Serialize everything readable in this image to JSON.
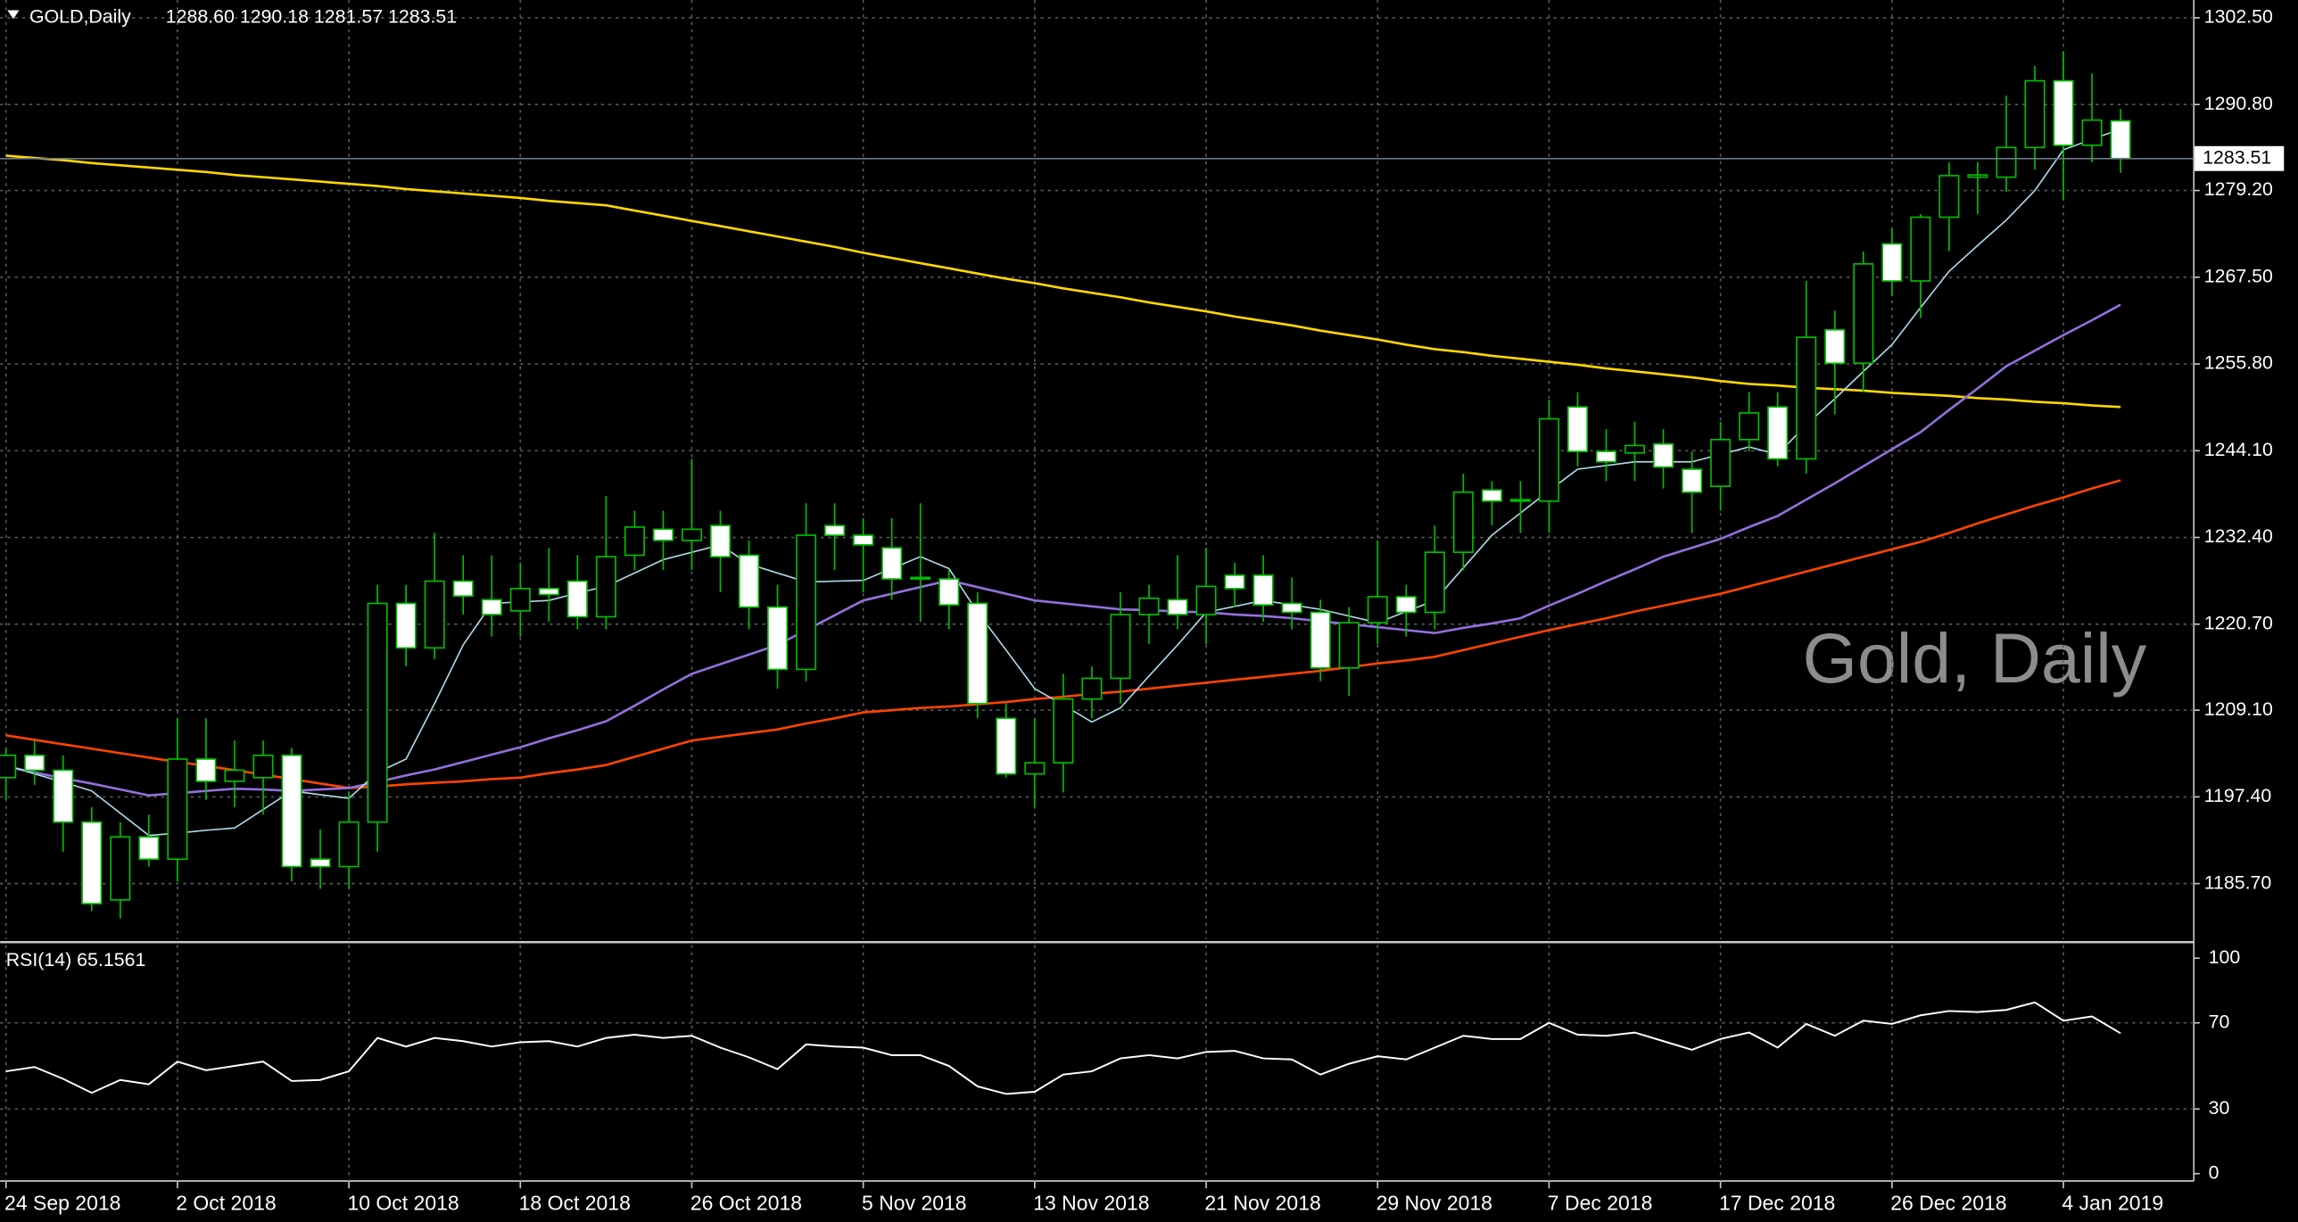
{
  "chart_data": [
    {
      "type": "candlestick",
      "symbol": "GOLD,Daily",
      "ohlc": "1288.60 1290.18 1281.57 1283.51",
      "watermark": "Gold, Daily",
      "categories": [
        "24 Sep 2018",
        null,
        null,
        null,
        null,
        null,
        "2 Oct 2018",
        null,
        null,
        null,
        null,
        null,
        "10 Oct 2018",
        null,
        null,
        null,
        null,
        null,
        "18 Oct 2018",
        null,
        null,
        null,
        null,
        null,
        "26 Oct 2018",
        null,
        null,
        null,
        null,
        null,
        "5 Nov 2018",
        null,
        null,
        null,
        null,
        null,
        "13 Nov 2018",
        null,
        null,
        null,
        null,
        null,
        "21 Nov 2018",
        null,
        null,
        null,
        null,
        null,
        "29 Nov 2018",
        null,
        null,
        null,
        null,
        null,
        "7 Dec 2018",
        null,
        null,
        null,
        null,
        null,
        "17 Dec 2018",
        null,
        null,
        null,
        null,
        null,
        "26 Dec 2018",
        null,
        null,
        null,
        null,
        null,
        "4 Jan 2019",
        null,
        null
      ],
      "open": [
        1200,
        1203,
        1201,
        1194,
        1183.5,
        1192,
        1189,
        1202.5,
        1199.5,
        1200,
        1203,
        1189,
        1188,
        1194,
        1223.5,
        1217.5,
        1226.5,
        1224,
        1222.5,
        1225.5,
        1226.5,
        1221.7,
        1230,
        1233.5,
        1232,
        1234,
        1230,
        1223,
        1214.6,
        1234,
        1232.7,
        1231,
        1226.8,
        1226.8,
        1223.5,
        1208,
        1200.5,
        1202,
        1210.6,
        1213.4,
        1222,
        1224,
        1222,
        1227.3,
        1227.3,
        1223.5,
        1222.3,
        1214.8,
        1220.9,
        1224.4,
        1222.3,
        1230.4,
        1238.8,
        1237.3,
        1237.3,
        1250,
        1244,
        1243.8,
        1245,
        1241.6,
        1239.3,
        1245.6,
        1250,
        1243,
        1260.4,
        1255.9,
        1272,
        1267,
        1275.6,
        1281,
        1281,
        1285,
        1294,
        1285.3,
        1288.6
      ],
      "high": [
        1204,
        1205,
        1203,
        1196,
        1194,
        1195,
        1208,
        1208,
        1205,
        1205,
        1204,
        1193,
        1198,
        1226,
        1226,
        1233,
        1230,
        1230,
        1229,
        1231,
        1230,
        1238,
        1236,
        1236,
        1243,
        1236,
        1232,
        1226,
        1237,
        1237,
        1235,
        1235,
        1237,
        1228,
        1225,
        1210,
        1208,
        1214,
        1215,
        1225,
        1226,
        1230,
        1231,
        1229,
        1230,
        1227,
        1224,
        1223,
        1232,
        1226,
        1234,
        1241,
        1240,
        1240,
        1251,
        1252,
        1247,
        1248,
        1247,
        1244,
        1248,
        1252,
        1252,
        1267,
        1263,
        1271,
        1274,
        1276,
        1283,
        1283,
        1292,
        1296,
        1298,
        1295,
        1290.18
      ],
      "low": [
        1197,
        1199,
        1190,
        1182,
        1181,
        1188,
        1186,
        1197,
        1196,
        1195,
        1186,
        1185,
        1185,
        1190,
        1215,
        1216,
        1222,
        1219,
        1219,
        1221,
        1220,
        1220,
        1228,
        1228,
        1228,
        1225,
        1220,
        1212,
        1213,
        1228,
        1225,
        1224,
        1221,
        1220,
        1208,
        1200,
        1196,
        1198,
        1208,
        1210,
        1218,
        1220,
        1218,
        1223,
        1221,
        1220,
        1213,
        1211,
        1218,
        1219,
        1220,
        1228,
        1234,
        1233,
        1233,
        1242,
        1240,
        1240,
        1239,
        1233,
        1236,
        1244,
        1242,
        1241,
        1249,
        1252,
        1265,
        1262,
        1271,
        1276,
        1279,
        1282,
        1278,
        1283,
        1281.57
      ],
      "close": [
        1203,
        1201,
        1194,
        1183,
        1192,
        1189,
        1202.5,
        1199.5,
        1201,
        1203,
        1188,
        1188,
        1194,
        1223.5,
        1217.5,
        1226.5,
        1224.5,
        1222,
        1225.5,
        1224.7,
        1221.7,
        1229.8,
        1233.8,
        1232,
        1233.5,
        1229.8,
        1223,
        1214.6,
        1232.7,
        1232.7,
        1231.4,
        1226.8,
        1227,
        1223.3,
        1210,
        1200.5,
        1202,
        1210.6,
        1213.4,
        1222,
        1224.2,
        1222,
        1225.8,
        1225.5,
        1223.3,
        1222.3,
        1214.8,
        1220.9,
        1224.4,
        1222.3,
        1230.4,
        1238.5,
        1237.3,
        1237.5,
        1248.4,
        1244,
        1242.6,
        1244.8,
        1241.9,
        1238.5,
        1245.6,
        1249.2,
        1243,
        1259.4,
        1255.9,
        1269.3,
        1267,
        1275.6,
        1281.2,
        1281.3,
        1285,
        1294,
        1285.3,
        1288.7,
        1283.51
      ],
      "up_color": "#000000",
      "down_color": "#ffffff",
      "wick_color": "#00c000",
      "series": [
        {
          "color": "#ffd700",
          "values": [
            1283.9,
            1283.6,
            1283.3,
            1282.9,
            1282.6,
            1282.3,
            1282.0,
            1281.7,
            1281.3,
            1281.0,
            1280.7,
            1280.4,
            1280.1,
            1279.8,
            1279.4,
            1279.1,
            1278.8,
            1278.5,
            1278.2,
            1277.8,
            1277.5,
            1277.2,
            1276.5,
            1275.8,
            1275.1,
            1274.4,
            1273.7,
            1273.0,
            1272.3,
            1271.6,
            1270.8,
            1270.1,
            1269.4,
            1268.7,
            1268.0,
            1267.3,
            1266.7,
            1266.0,
            1265.4,
            1264.8,
            1264.1,
            1263.5,
            1262.9,
            1262.2,
            1261.6,
            1261.0,
            1260.3,
            1259.7,
            1259.1,
            1258.4,
            1257.8,
            1257.4,
            1256.9,
            1256.5,
            1256.1,
            1255.7,
            1255.2,
            1254.8,
            1254.4,
            1254.0,
            1253.5,
            1253.1,
            1252.9,
            1252.6,
            1252.4,
            1252.2,
            1251.9,
            1251.7,
            1251.5,
            1251.2,
            1251.0,
            1250.7,
            1250.5,
            1250.2,
            1250.0
          ]
        },
        {
          "color": "#ff4500",
          "values": [
            1205.7,
            1205.1,
            1204.5,
            1203.9,
            1203.3,
            1202.7,
            1202.1,
            1201.6,
            1201.0,
            1200.4,
            1199.8,
            1199.2,
            1198.6,
            1198.8,
            1199.1,
            1199.3,
            1199.5,
            1199.8,
            1200.0,
            1200.6,
            1201.1,
            1201.7,
            1202.8,
            1203.9,
            1205.0,
            1205.5,
            1206.0,
            1206.5,
            1207.3,
            1208.0,
            1208.8,
            1209.1,
            1209.4,
            1209.6,
            1209.9,
            1210.2,
            1210.6,
            1210.9,
            1211.3,
            1211.6,
            1212.0,
            1212.4,
            1212.8,
            1213.2,
            1213.6,
            1214.0,
            1214.4,
            1214.9,
            1215.4,
            1215.8,
            1216.3,
            1217.2,
            1218.1,
            1219.0,
            1219.9,
            1220.7,
            1221.5,
            1222.4,
            1223.2,
            1224.0,
            1224.8,
            1225.8,
            1226.8,
            1227.8,
            1228.8,
            1229.8,
            1230.8,
            1231.8,
            1233.0,
            1234.3,
            1235.5,
            1236.7,
            1237.8,
            1239.0,
            1240.1
          ]
        },
        {
          "color": "#9370db",
          "values": [
            1201.5,
            1200.7,
            1199.9,
            1199.2,
            1198.4,
            1197.6,
            1197.9,
            1198.2,
            1198.5,
            1198.4,
            1198.2,
            1198.4,
            1198.6,
            1199.4,
            1200.3,
            1201.1,
            1202.1,
            1203.1,
            1204.1,
            1205.3,
            1206.4,
            1207.6,
            1209.7,
            1211.9,
            1214.0,
            1215.3,
            1216.6,
            1217.9,
            1219.9,
            1221.9,
            1223.9,
            1224.8,
            1225.7,
            1226.6,
            1225.7,
            1224.8,
            1223.9,
            1223.5,
            1223.1,
            1222.7,
            1222.6,
            1222.4,
            1222.3,
            1222.0,
            1221.8,
            1221.5,
            1221.1,
            1220.7,
            1220.3,
            1219.9,
            1219.5,
            1220.2,
            1220.8,
            1221.5,
            1223.2,
            1224.8,
            1226.5,
            1228.1,
            1229.8,
            1231.0,
            1232.2,
            1233.8,
            1235.3,
            1237.5,
            1239.7,
            1242.0,
            1244.3,
            1246.6,
            1249.6,
            1252.5,
            1255.5,
            1257.6,
            1259.7,
            1261.7,
            1263.8
          ]
        },
        {
          "color": "#add8e6",
          "values": [
            1201.7,
            1200.5,
            1199.4,
            1198.2,
            1195.2,
            1192.2,
            1192.5,
            1192.9,
            1193.2,
            1195.7,
            1198.2,
            1197.7,
            1197.2,
            1200.7,
            1202.5,
            1210.0,
            1217.9,
            1223.5,
            1223.7,
            1223.9,
            1224.9,
            1225.8,
            1227.6,
            1229.4,
            1230.4,
            1231.4,
            1228.8,
            1227.6,
            1226.4,
            1226.5,
            1226.6,
            1228.2,
            1229.8,
            1228.2,
            1222.3,
            1217.2,
            1212.0,
            1209.8,
            1207.5,
            1209.4,
            1213.7,
            1217.9,
            1222.3,
            1223.1,
            1223.9,
            1223.3,
            1222.7,
            1221.8,
            1220.9,
            1222.4,
            1223.9,
            1228.3,
            1232.7,
            1235.7,
            1238.7,
            1241.6,
            1242.1,
            1242.6,
            1242.6,
            1242.6,
            1243.6,
            1244.6,
            1243.6,
            1247.6,
            1251.1,
            1254.8,
            1258.4,
            1263.4,
            1268.3,
            1271.8,
            1275.2,
            1279.2,
            1284.7,
            1286.1,
            1287.5
          ]
        }
      ],
      "ylim": [
        1178.2,
        1304.9
      ],
      "yticks": [
        {
          "value": 1302.5,
          "label": "1302.50"
        },
        {
          "value": 1290.8,
          "label": "1290.80"
        },
        {
          "value": 1279.2,
          "label": "1279.20"
        },
        {
          "value": 1267.5,
          "label": "1267.50"
        },
        {
          "value": 1255.8,
          "label": "1255.80"
        },
        {
          "value": 1244.1,
          "label": "1244.10"
        },
        {
          "value": 1232.4,
          "label": "1232.40"
        },
        {
          "value": 1220.7,
          "label": "1220.70"
        },
        {
          "value": 1209.1,
          "label": "1209.10"
        },
        {
          "value": 1197.4,
          "label": "1197.40"
        },
        {
          "value": 1185.7,
          "label": "1185.70"
        }
      ],
      "last_price": 1283.51,
      "grid": true
    },
    {
      "type": "line",
      "title": "RSI(14) 65.1561",
      "color": "#ffffff",
      "values": [
        47.5,
        49.5,
        44,
        37.5,
        43.5,
        41.5,
        52,
        48,
        50,
        52,
        43,
        43.5,
        47.5,
        63,
        59,
        63,
        61.5,
        59,
        61,
        61.5,
        59,
        63,
        64.5,
        63,
        64,
        58.5,
        54,
        48.5,
        60,
        59,
        58.5,
        55,
        55,
        50,
        40.5,
        37,
        38,
        46,
        47.5,
        53.5,
        55,
        53.5,
        56.5,
        57,
        53.5,
        53,
        46,
        51,
        54.5,
        53,
        58.5,
        64,
        62.5,
        62.5,
        70,
        64.5,
        64,
        65.5,
        61.5,
        57.5,
        62.5,
        65.5,
        58.5,
        69.5,
        64,
        71,
        69.5,
        73.5,
        75.5,
        75,
        76,
        79.5,
        71,
        73,
        65.1561
      ],
      "ylim": [
        -3.4,
        106.1
      ],
      "yticks": [
        0,
        30,
        70,
        100
      ],
      "grid": true
    }
  ]
}
